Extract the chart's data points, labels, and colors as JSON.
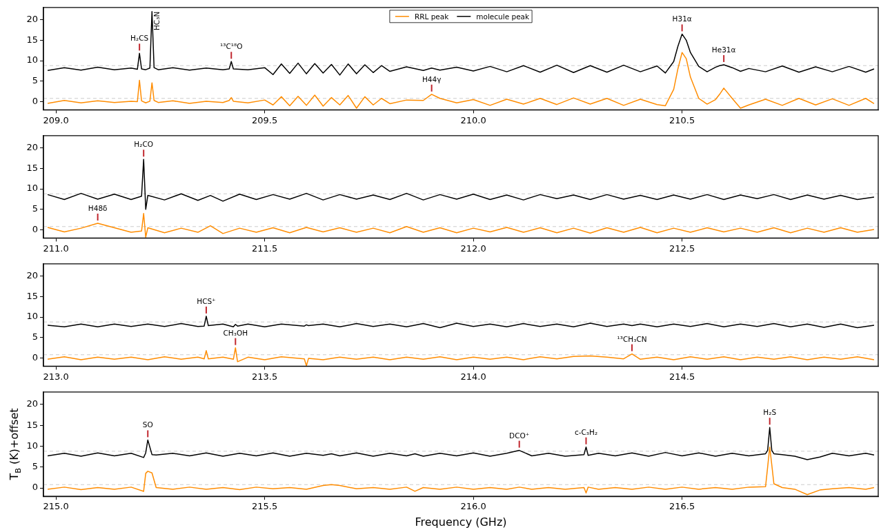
{
  "chart_data": [
    {
      "type": "line",
      "legend": "top",
      "xlim": [
        208.97,
        210.97
      ],
      "ylim": [
        -2,
        23
      ],
      "xticks": [
        {
          "value": 209,
          "label": "209.0"
        },
        {
          "value": 209.5,
          "label": "209.5"
        },
        {
          "value": 210,
          "label": "210.0"
        },
        {
          "value": 210.5,
          "label": "210.5"
        }
      ],
      "yticks": [
        0,
        5,
        10,
        15,
        20
      ],
      "ref_lines": [
        {
          "axis": "y",
          "value": 0.8,
          "color": "#cccccc",
          "line_style": "dashed"
        },
        {
          "axis": "y",
          "value": 8.8,
          "color": "#cccccc",
          "line_style": "dashed"
        }
      ],
      "annotations": [
        {
          "text": "H₂CS",
          "x": 209.2,
          "y": 11.8
        },
        {
          "text": "HC₃N",
          "x": 209.23,
          "y": 22
        },
        {
          "text": "¹³C¹⁸O",
          "x": 209.42,
          "y": 9.8
        },
        {
          "text": "H44γ",
          "x": 209.9,
          "y": 1.8
        },
        {
          "text": "H31α",
          "x": 210.5,
          "y": 16.5
        },
        {
          "text": "He31α",
          "x": 210.6,
          "y": 9.0
        }
      ],
      "x": [
        208.98,
        209.02,
        209.06,
        209.1,
        209.14,
        209.18,
        209.195,
        209.2,
        209.205,
        209.215,
        209.225,
        209.23,
        209.235,
        209.245,
        209.28,
        209.32,
        209.36,
        209.4,
        209.415,
        209.42,
        209.425,
        209.46,
        209.5,
        209.52,
        209.54,
        209.56,
        209.58,
        209.6,
        209.62,
        209.64,
        209.66,
        209.68,
        209.7,
        209.72,
        209.74,
        209.76,
        209.78,
        209.8,
        209.84,
        209.88,
        209.9,
        209.92,
        209.96,
        210.0,
        210.04,
        210.08,
        210.12,
        210.16,
        210.2,
        210.24,
        210.28,
        210.32,
        210.36,
        210.4,
        210.44,
        210.46,
        210.48,
        210.49,
        210.5,
        210.51,
        210.52,
        210.54,
        210.56,
        210.58,
        210.59,
        210.6,
        210.62,
        210.64,
        210.66,
        210.7,
        210.74,
        210.78,
        210.82,
        210.86,
        210.9,
        210.94,
        210.96
      ],
      "series": [
        {
          "name": "RRL peak",
          "color": "#ff8c00",
          "values": [
            -0.4,
            0.3,
            -0.3,
            0.2,
            -0.2,
            0.1,
            0,
            5.2,
            0.2,
            -0.3,
            0.1,
            4.6,
            0.3,
            -0.2,
            0.2,
            -0.4,
            0.1,
            -0.2,
            0.3,
            1.0,
            0.1,
            -0.3,
            0.4,
            -0.8,
            1.2,
            -1.0,
            1.3,
            -0.9,
            1.6,
            -1.1,
            1.0,
            -0.8,
            1.5,
            -1.6,
            1.2,
            -0.8,
            0.8,
            -0.5,
            0.4,
            0.3,
            1.8,
            0.8,
            -0.3,
            0.5,
            -0.9,
            0.6,
            -0.6,
            0.8,
            -0.7,
            0.9,
            -0.6,
            0.8,
            -0.9,
            0.6,
            -0.7,
            -1.0,
            3.0,
            8.0,
            12.0,
            10.5,
            6.0,
            0.8,
            -0.6,
            0.5,
            1.8,
            3.3,
            0.8,
            -1.6,
            -0.8,
            0.6,
            -0.9,
            0.8,
            -0.8,
            0.7,
            -0.9,
            0.8,
            -0.5
          ]
        },
        {
          "name": "molecule peak",
          "color": "#000000",
          "values": [
            7.6,
            8.3,
            7.7,
            8.4,
            7.8,
            8.2,
            7.9,
            11.8,
            8.0,
            7.8,
            8.2,
            22,
            8.3,
            7.8,
            8.3,
            7.7,
            8.2,
            7.8,
            8.0,
            9.8,
            8.0,
            7.8,
            8.3,
            6.6,
            9.2,
            6.9,
            9.4,
            6.8,
            9.3,
            7.0,
            9.1,
            6.5,
            9.2,
            6.8,
            9.0,
            7.1,
            8.8,
            7.4,
            8.5,
            7.6,
            8.2,
            7.7,
            8.4,
            7.5,
            8.6,
            7.3,
            8.8,
            7.2,
            8.9,
            7.1,
            8.8,
            7.2,
            8.9,
            7.3,
            8.7,
            7.0,
            9.8,
            13.5,
            16.5,
            15.0,
            12.0,
            8.6,
            7.3,
            8.4,
            8.8,
            9.0,
            8.3,
            7.4,
            8.1,
            7.3,
            8.7,
            7.2,
            8.5,
            7.3,
            8.6,
            7.2,
            8.0
          ]
        }
      ]
    },
    {
      "type": "line",
      "xlim": [
        210.97,
        212.97
      ],
      "ylim": [
        -2,
        23
      ],
      "xticks": [
        {
          "value": 211,
          "label": "211.0"
        },
        {
          "value": 211.5,
          "label": "211.5"
        },
        {
          "value": 212,
          "label": "212.0"
        },
        {
          "value": 212.5,
          "label": "212.5"
        }
      ],
      "yticks": [
        0,
        5,
        10,
        15,
        20
      ],
      "ref_lines": [
        {
          "axis": "y",
          "value": 0.8,
          "color": "#cccccc",
          "line_style": "dashed"
        },
        {
          "axis": "y",
          "value": 8.8,
          "color": "#cccccc",
          "line_style": "dashed"
        }
      ],
      "annotations": [
        {
          "text": "H₂CO",
          "x": 211.21,
          "y": 17.2
        },
        {
          "text": "H48δ",
          "x": 211.1,
          "y": 1.6
        }
      ],
      "x": [
        210.98,
        211.02,
        211.06,
        211.1,
        211.14,
        211.18,
        211.205,
        211.21,
        211.215,
        211.22,
        211.26,
        211.3,
        211.34,
        211.37,
        211.4,
        211.44,
        211.48,
        211.52,
        211.56,
        211.6,
        211.64,
        211.68,
        211.72,
        211.76,
        211.8,
        211.84,
        211.88,
        211.92,
        211.96,
        212.0,
        212.04,
        212.08,
        212.12,
        212.16,
        212.2,
        212.24,
        212.28,
        212.32,
        212.36,
        212.4,
        212.44,
        212.48,
        212.52,
        212.56,
        212.6,
        212.64,
        212.68,
        212.72,
        212.76,
        212.8,
        212.84,
        212.88,
        212.92,
        212.96
      ],
      "series": [
        {
          "color": "#ff8c00",
          "values": [
            0.6,
            -0.5,
            0.4,
            1.6,
            0.5,
            -0.6,
            -0.3,
            4.0,
            -1.8,
            0.5,
            -0.7,
            0.4,
            -0.6,
            1.0,
            -0.9,
            0.4,
            -0.6,
            0.5,
            -0.7,
            0.6,
            -0.5,
            0.5,
            -0.6,
            0.4,
            -0.7,
            0.8,
            -0.6,
            0.5,
            -0.7,
            0.4,
            -0.5,
            0.6,
            -0.6,
            0.5,
            -0.7,
            0.4,
            -0.8,
            0.5,
            -0.6,
            0.6,
            -0.7,
            0.4,
            -0.6,
            0.5,
            -0.5,
            0.4,
            -0.6,
            0.5,
            -0.7,
            0.4,
            -0.6,
            0.5,
            -0.6,
            0.1
          ]
        },
        {
          "color": "#000000",
          "values": [
            8.6,
            7.4,
            8.9,
            7.5,
            8.7,
            7.4,
            8.2,
            17.2,
            5.0,
            8.4,
            7.3,
            8.8,
            7.2,
            8.4,
            7.0,
            8.7,
            7.4,
            8.6,
            7.5,
            8.9,
            7.3,
            8.6,
            7.5,
            8.5,
            7.4,
            8.9,
            7.3,
            8.6,
            7.5,
            8.7,
            7.4,
            8.5,
            7.3,
            8.6,
            7.6,
            8.5,
            7.4,
            8.6,
            7.5,
            8.4,
            7.4,
            8.5,
            7.5,
            8.6,
            7.4,
            8.5,
            7.6,
            8.6,
            7.4,
            8.5,
            7.5,
            8.4,
            7.4,
            8.0
          ]
        }
      ]
    },
    {
      "type": "line",
      "xlim": [
        212.97,
        214.97
      ],
      "ylim": [
        -2,
        23
      ],
      "xticks": [
        {
          "value": 213,
          "label": "213.0"
        },
        {
          "value": 213.5,
          "label": "213.5"
        },
        {
          "value": 214,
          "label": "214.0"
        },
        {
          "value": 214.5,
          "label": "214.5"
        }
      ],
      "yticks": [
        0,
        5,
        10,
        15,
        20
      ],
      "ref_lines": [
        {
          "axis": "y",
          "value": 0.8,
          "color": "#cccccc",
          "line_style": "dashed"
        },
        {
          "axis": "y",
          "value": 8.8,
          "color": "#cccccc",
          "line_style": "dashed"
        }
      ],
      "annotations": [
        {
          "text": "HCS⁺",
          "x": 213.36,
          "y": 10.2
        },
        {
          "text": "CH₃OH",
          "x": 213.43,
          "y": 2.5
        },
        {
          "text": "¹³CH₃CN",
          "x": 214.38,
          "y": 1.0
        }
      ],
      "x": [
        212.98,
        213.02,
        213.06,
        213.1,
        213.14,
        213.18,
        213.22,
        213.26,
        213.3,
        213.34,
        213.355,
        213.36,
        213.365,
        213.4,
        213.425,
        213.43,
        213.435,
        213.46,
        213.5,
        213.54,
        213.595,
        213.6,
        213.605,
        213.64,
        213.68,
        213.72,
        213.76,
        213.8,
        213.84,
        213.88,
        213.92,
        213.96,
        214.0,
        214.04,
        214.08,
        214.12,
        214.16,
        214.2,
        214.24,
        214.28,
        214.32,
        214.36,
        214.38,
        214.4,
        214.44,
        214.48,
        214.52,
        214.56,
        214.6,
        214.64,
        214.68,
        214.72,
        214.76,
        214.8,
        214.84,
        214.88,
        214.92,
        214.96
      ],
      "series": [
        {
          "color": "#ff8c00",
          "values": [
            -0.3,
            0.3,
            -0.4,
            0.2,
            -0.3,
            0.2,
            -0.4,
            0.3,
            -0.3,
            0.2,
            -0.2,
            1.8,
            -0.2,
            0.2,
            -0.3,
            2.5,
            -0.9,
            0.2,
            -0.4,
            0.3,
            -0.2,
            -1.9,
            -0.1,
            -0.4,
            0.2,
            -0.3,
            0.2,
            -0.4,
            0.2,
            -0.3,
            0.3,
            -0.4,
            0.2,
            -0.3,
            0.2,
            -0.4,
            0.3,
            -0.2,
            0.4,
            0.5,
            0.2,
            -0.2,
            1.0,
            -0.3,
            0.2,
            -0.4,
            0.3,
            -0.3,
            0.3,
            -0.4,
            0.2,
            -0.3,
            0.3,
            -0.4,
            0.2,
            -0.3,
            0.3,
            -0.4
          ]
        },
        {
          "color": "#000000",
          "values": [
            8.0,
            7.6,
            8.3,
            7.6,
            8.3,
            7.7,
            8.3,
            7.7,
            8.4,
            7.7,
            7.8,
            10.2,
            7.9,
            8.3,
            7.6,
            8.2,
            7.8,
            8.3,
            7.6,
            8.3,
            7.8,
            8.1,
            7.9,
            8.3,
            7.6,
            8.4,
            7.7,
            8.3,
            7.6,
            8.4,
            7.4,
            8.5,
            7.7,
            8.3,
            7.6,
            8.4,
            7.7,
            8.3,
            7.6,
            8.5,
            7.7,
            8.3,
            7.9,
            8.3,
            7.6,
            8.3,
            7.7,
            8.4,
            7.6,
            8.3,
            7.7,
            8.4,
            7.6,
            8.3,
            7.5,
            8.3,
            7.4,
            8.0
          ]
        }
      ]
    },
    {
      "type": "line",
      "xlabel": "Frequency (GHz)",
      "ylabel": "T$_{B}$ (K)+offset",
      "xlim": [
        214.97,
        216.97
      ],
      "ylim": [
        -2,
        23
      ],
      "xticks": [
        {
          "value": 215,
          "label": "215.0"
        },
        {
          "value": 215.5,
          "label": "215.5"
        },
        {
          "value": 216,
          "label": "216.0"
        },
        {
          "value": 216.5,
          "label": "216.5"
        }
      ],
      "yticks": [
        0,
        5,
        10,
        15,
        20
      ],
      "ref_lines": [
        {
          "axis": "y",
          "value": 0.8,
          "color": "#cccccc",
          "line_style": "dashed"
        },
        {
          "axis": "y",
          "value": 8.8,
          "color": "#cccccc",
          "line_style": "dashed"
        }
      ],
      "annotations": [
        {
          "text": "SO",
          "x": 215.22,
          "y": 11.5
        },
        {
          "text": "DCO⁺",
          "x": 216.11,
          "y": 9.0
        },
        {
          "text": "c-C₃H₂",
          "x": 216.27,
          "y": 9.8
        },
        {
          "text": "H₂S",
          "x": 216.71,
          "y": 14.5
        }
      ],
      "x": [
        214.98,
        215.02,
        215.06,
        215.1,
        215.14,
        215.18,
        215.21,
        215.215,
        215.22,
        215.23,
        215.24,
        215.28,
        215.32,
        215.36,
        215.4,
        215.44,
        215.48,
        215.52,
        215.56,
        215.6,
        215.64,
        215.66,
        215.68,
        215.72,
        215.76,
        215.8,
        215.84,
        215.86,
        215.88,
        215.92,
        215.96,
        216.0,
        216.04,
        216.08,
        216.11,
        216.14,
        216.18,
        216.22,
        216.265,
        216.27,
        216.275,
        216.3,
        216.34,
        216.38,
        216.42,
        216.46,
        216.5,
        216.54,
        216.58,
        216.62,
        216.66,
        216.7,
        216.705,
        216.71,
        216.715,
        216.72,
        216.74,
        216.77,
        216.8,
        216.83,
        216.86,
        216.9,
        216.94,
        216.96
      ],
      "series": [
        {
          "color": "#ff8c00",
          "values": [
            -0.3,
            0.2,
            -0.4,
            0.1,
            -0.3,
            0.2,
            -0.8,
            3.5,
            4.0,
            3.6,
            0.1,
            -0.3,
            0.2,
            -0.3,
            0.1,
            -0.4,
            0.2,
            -0.2,
            0.1,
            -0.3,
            0.6,
            0.8,
            0.6,
            -0.2,
            0.1,
            -0.3,
            0.2,
            -0.8,
            0.1,
            -0.3,
            0.2,
            -0.3,
            0.1,
            -0.3,
            0.2,
            -0.3,
            0.1,
            -0.3,
            0.1,
            -1.2,
            0.2,
            -0.3,
            0.1,
            -0.3,
            0.2,
            -0.3,
            0.2,
            -0.3,
            0.1,
            -0.3,
            0.2,
            0.3,
            5.0,
            9.8,
            5.5,
            1.0,
            0.1,
            -0.3,
            -1.6,
            -0.5,
            -0.2,
            0.1,
            -0.3,
            0.1
          ]
        },
        {
          "color": "#000000",
          "values": [
            7.7,
            8.3,
            7.6,
            8.4,
            7.7,
            8.3,
            7.3,
            8.4,
            11.5,
            8.0,
            7.9,
            8.3,
            7.7,
            8.4,
            7.6,
            8.3,
            7.7,
            8.4,
            7.6,
            8.3,
            7.8,
            8.2,
            7.7,
            8.4,
            7.6,
            8.3,
            7.7,
            8.2,
            7.6,
            8.3,
            7.7,
            8.4,
            7.6,
            8.3,
            9.0,
            7.7,
            8.3,
            7.6,
            8.0,
            9.8,
            7.8,
            8.3,
            7.7,
            8.4,
            7.6,
            8.5,
            7.7,
            8.4,
            7.6,
            8.3,
            7.7,
            8.2,
            9.0,
            14.5,
            9.0,
            8.2,
            8.0,
            7.6,
            6.8,
            7.4,
            8.3,
            7.7,
            8.3,
            7.9
          ]
        }
      ]
    }
  ]
}
